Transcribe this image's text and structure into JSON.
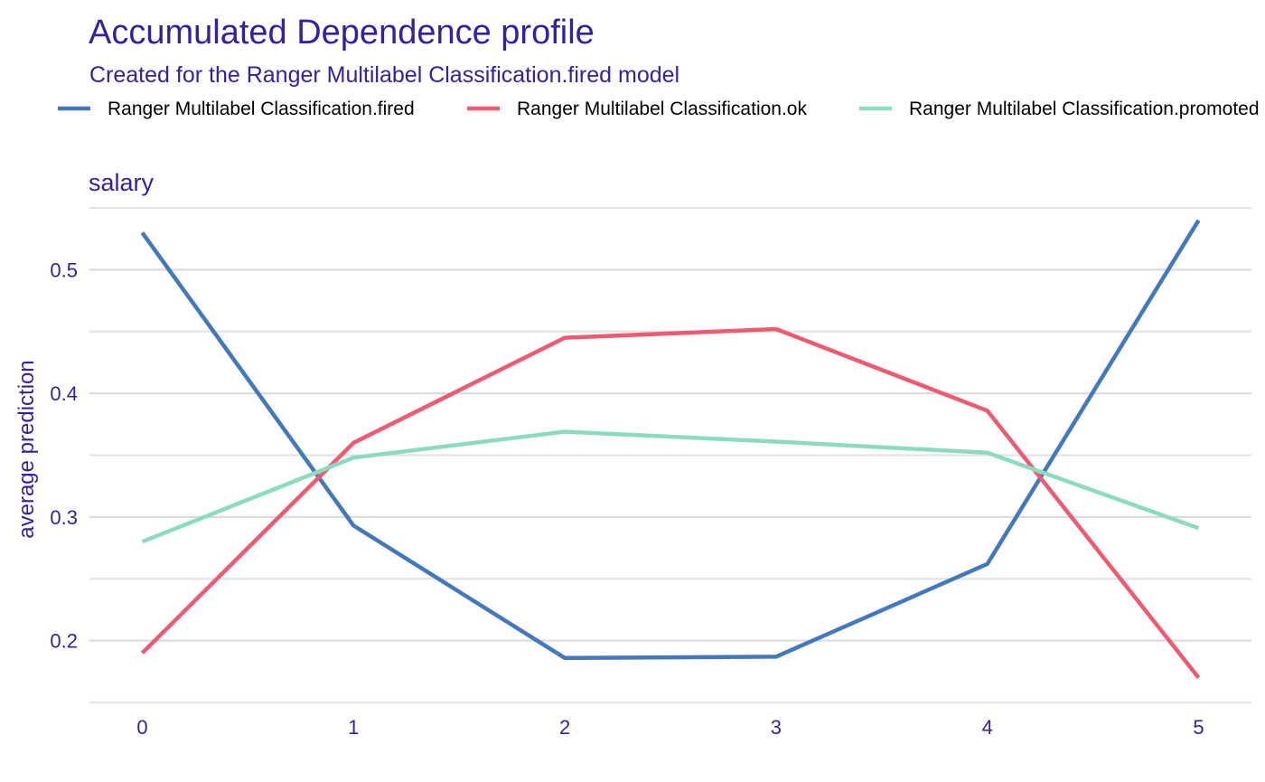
{
  "chart_data": {
    "type": "line",
    "title": "Accumulated Dependence profile",
    "subtitle": "Created for the Ranger Multilabel Classification.fired model",
    "panel": "salary",
    "xlabel": "",
    "ylabel": "average prediction",
    "x": [
      0,
      1,
      2,
      3,
      4,
      5
    ],
    "xlim": [
      -0.25,
      5.25
    ],
    "ylim": [
      0.15,
      0.55
    ],
    "x_ticks": [
      "0",
      "1",
      "2",
      "3",
      "4",
      "5"
    ],
    "y_ticks": [
      "0.2",
      "0.3",
      "0.4",
      "0.5"
    ],
    "legend_position": "top",
    "grid": true,
    "series": [
      {
        "name": "Ranger Multilabel Classification.fired",
        "color": "#4378bf",
        "values": [
          0.53,
          0.293,
          0.186,
          0.187,
          0.262,
          0.54
        ]
      },
      {
        "name": "Ranger Multilabel Classification.ok",
        "color": "#f05a71",
        "values": [
          0.19,
          0.36,
          0.445,
          0.452,
          0.386,
          0.17
        ]
      },
      {
        "name": "Ranger Multilabel Classification.promoted",
        "color": "#8bdcbe",
        "values": [
          0.28,
          0.348,
          0.369,
          0.361,
          0.352,
          0.291
        ]
      }
    ]
  }
}
